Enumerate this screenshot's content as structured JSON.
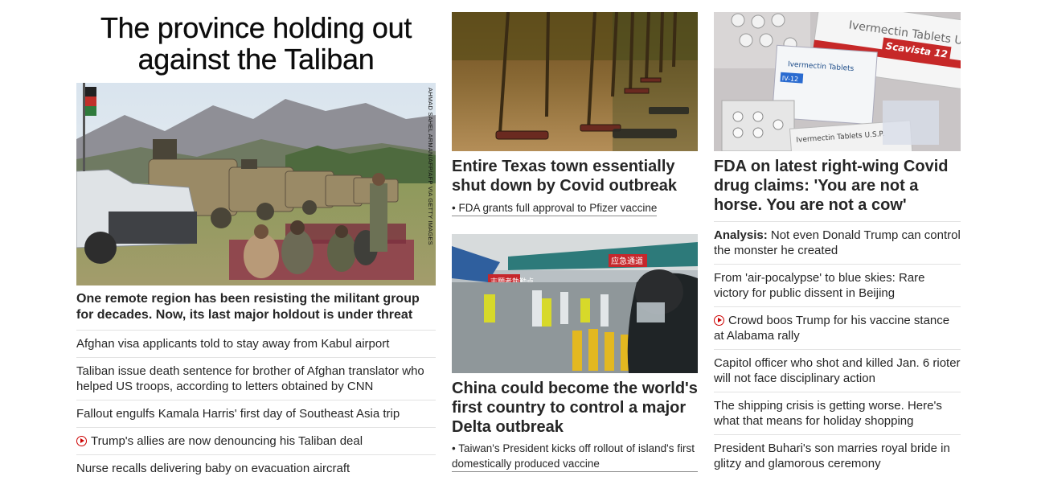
{
  "lead": {
    "headline": "The province holding out against the Taliban",
    "image_credit": "AHMAD SAHEL ARMAN/AFP/AFP VIA GETTY IMAGES",
    "subheadline": "One remote region has been resisting the militant group for decades. Now, its last major holdout is under threat",
    "links": [
      {
        "text": "Afghan visa applicants told to stay away from Kabul airport",
        "video": false
      },
      {
        "text": "Taliban issue death sentence for brother of Afghan translator who helped US troops, according to letters obtained by CNN",
        "video": false
      },
      {
        "text": "Fallout engulfs Kamala Harris' first day of Southeast Asia trip",
        "video": false
      },
      {
        "text": "Trump's allies are now denouncing his Taliban deal",
        "video": true
      },
      {
        "text": "Nurse recalls delivering baby on evacuation aircraft",
        "video": false
      }
    ]
  },
  "middle": {
    "story1": {
      "title": "Entire Texas town essentially shut down by Covid outbreak",
      "related": "• FDA grants full approval to Pfizer vaccine"
    },
    "story2": {
      "title": "China could become the world's first country to control a major Delta outbreak",
      "related": "• Taiwan's President kicks off rollout of island's first domestically produced vaccine",
      "sign1": "志願者執勤点",
      "sign2": "应急通道"
    }
  },
  "right": {
    "story": {
      "title": "FDA on latest right-wing Covid drug claims: 'You are not a horse. You are not a cow'",
      "box_text1": "Ivermectin Tablets USP",
      "box_text2": "Scavista 12",
      "box_text3": "Ivermectin Tablets",
      "box_text4": "IV-12",
      "box_text5": "Ivermectin Tablets U.S.P."
    },
    "links": [
      {
        "prefix": "Analysis:",
        "text": " Not even Donald Trump can control the monster he created",
        "video": false
      },
      {
        "prefix": "",
        "text": "From 'air-pocalypse' to blue skies: Rare victory for public dissent in Beijing",
        "video": false
      },
      {
        "prefix": "",
        "text": "Crowd boos Trump for his vaccine stance at Alabama rally",
        "video": true
      },
      {
        "prefix": "",
        "text": "Capitol officer who shot and killed Jan. 6 rioter will not face disciplinary action",
        "video": false
      },
      {
        "prefix": "",
        "text": "The shipping crisis is getting worse. Here's what that means for holiday shopping",
        "video": false
      },
      {
        "prefix": "",
        "text": "President Buhari's son marries royal bride in glitzy and glamorous ceremony",
        "video": false
      }
    ]
  },
  "colors": {
    "video_red": "#cc0000",
    "text": "#262626",
    "divider": "#e2e2e2"
  }
}
